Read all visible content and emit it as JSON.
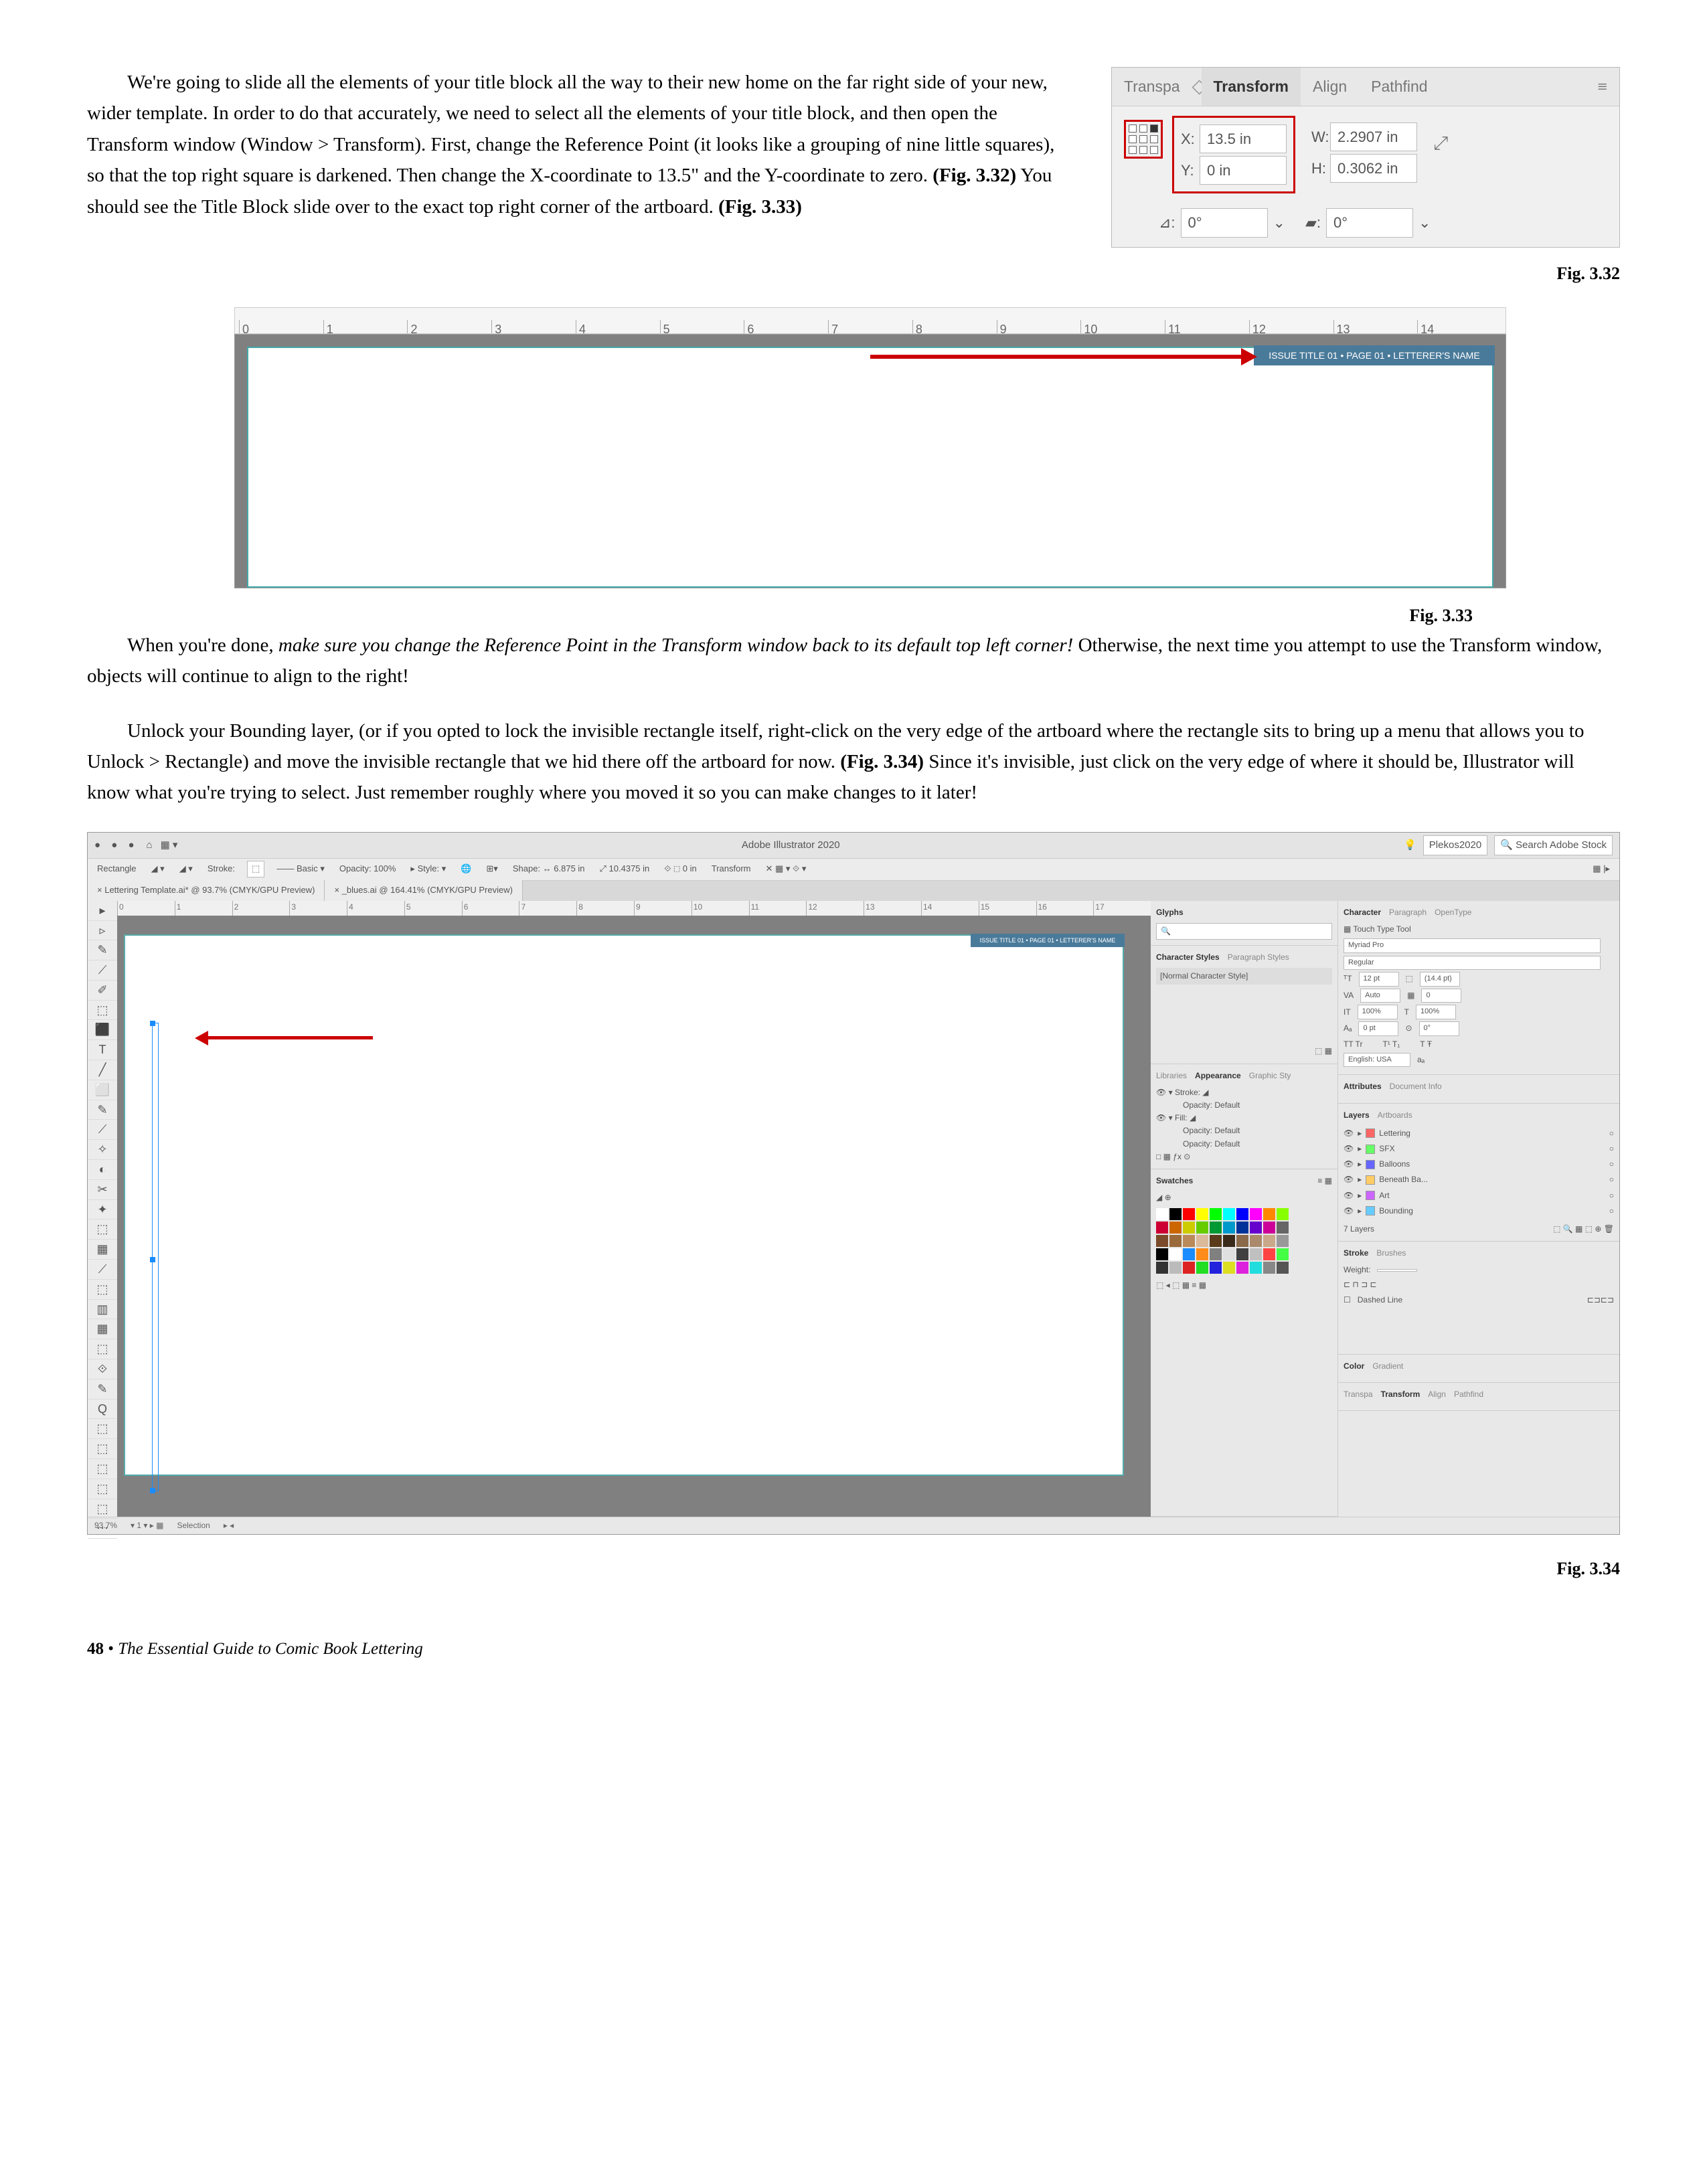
{
  "para1": "We're going to slide all the elements of your title block all the way to their new home on the far right side of your new, wider template. In order to do that accurately, we need to select all the elements of your title block, and then open the Transform window (Window > Transform). First, change the Reference Point (it looks like a grouping of nine little squares), so that the top right square is darkened. Then change the X-coordinate to 13.5\" and the Y-coordinate to zero. ",
  "para1b": "(Fig. 3.32)",
  "para1c": " You should see the Title Block slide over to the exact top right corner of the artboard. ",
  "para1d": "(Fig. 3.33)",
  "para2a": "When you're done, ",
  "para2b": "make sure you change the Reference Point in the Transform window back to its default top left corner!",
  "para2c": " Otherwise, the next time you attempt to use the Transform window, objects will continue to align to the right!",
  "para3a": "Unlock your Bounding layer, (or if you opted to lock the invisible rectangle itself, right-click on the very edge of the artboard where the rectangle sits to bring up a menu that allows you to Unlock > Rectangle) and move the invisible rectangle that we hid there off the artboard for now. ",
  "para3b": "(Fig. 3.34)",
  "para3c": " Since it's invisible, just click on the very edge of where it should be, Illustrator will know what you're trying to select. Just remember roughly where you moved it so you can make changes to it later!",
  "fig332": {
    "tabs": {
      "t1": "Transpa",
      "t2": "Transform",
      "t3": "Align",
      "t4": "Pathfind"
    },
    "x_label": "X:",
    "x_val": "13.5 in",
    "y_label": "Y:",
    "y_val": "0 in",
    "w_label": "W:",
    "w_val": "2.2907 in",
    "h_label": "H:",
    "h_val": "0.3062 in",
    "ang1_label": "⊿:",
    "ang1_val": "0°",
    "ang2_label": "▰:",
    "ang2_val": "0°",
    "caption": "Fig. 3.32"
  },
  "fig333": {
    "ruler": [
      "0",
      "1",
      "2",
      "3",
      "4",
      "5",
      "6",
      "7",
      "8",
      "9",
      "10",
      "11",
      "12",
      "13",
      "14"
    ],
    "titleblock": "ISSUE TITLE 01 • PAGE 01 • LETTERER'S NAME",
    "caption": "Fig. 3.33"
  },
  "fig334": {
    "topbar": {
      "app": "Adobe Illustrator 2020",
      "right1": "Plekos2020",
      "right2": "Search Adobe Stock"
    },
    "toolbar": {
      "shape": "Rectangle",
      "stroke": "Stroke:",
      "basic": "Basic",
      "opacity": "Opacity: 100%",
      "style": "Style:",
      "shape2": "Shape:",
      "wval": "6.875 in",
      "hval": "10.4375 in",
      "transform": "Transform"
    },
    "tabs": {
      "t1": "Lettering Template.ai* @ 93.7% (CMYK/GPU Preview)",
      "t2": "_blues.ai @ 164.41% (CMYK/GPU Preview)"
    },
    "ruler": [
      "0",
      "1",
      "2",
      "3",
      "4",
      "5",
      "6",
      "7",
      "8",
      "9",
      "10",
      "11",
      "12",
      "13",
      "14",
      "15",
      "16",
      "17"
    ],
    "titleblock": "ISSUE TITLE 01 • PAGE 01 • LETTERER'S NAME",
    "tools": [
      "▸",
      "▹",
      "✎",
      "⟋",
      "✐",
      "⬚",
      "⬛",
      "T",
      "╱",
      "⬜",
      "✎",
      "⟋",
      "✧",
      "◐",
      "✂",
      "✦",
      "⬚",
      "▦",
      "⟋",
      "⬚",
      "▥",
      "▦",
      "⬚",
      "⟐",
      "✎",
      "Q",
      "⬚",
      "⬚",
      "⬚",
      "⬚",
      "⬚",
      "⋯"
    ],
    "glyphs_panel": {
      "title": "Glyphs"
    },
    "charstyles": {
      "t1": "Character Styles",
      "t2": "Paragraph Styles",
      "item": "[Normal Character Style]"
    },
    "appearance": {
      "t1": "Libraries",
      "t2": "Appearance",
      "t3": "Graphic Sty",
      "stroke": "Stroke:",
      "fill": "Fill:",
      "op1": "Opacity: Default",
      "op2": "Opacity: Default",
      "op3": "Opacity: Default"
    },
    "swatches": {
      "title": "Swatches",
      "colors": [
        "#ffffff",
        "#000000",
        "#ff0000",
        "#ffff00",
        "#00ff00",
        "#00ffff",
        "#0000ff",
        "#ff00ff",
        "#ff8800",
        "#88ff00",
        "#cc0033",
        "#cc6600",
        "#cccc00",
        "#66cc00",
        "#009933",
        "#0099cc",
        "#003399",
        "#6600cc",
        "#cc0099",
        "#666666",
        "#7a4a2a",
        "#9a6a3a",
        "#ba8a5a",
        "#daba9a",
        "#5a3a1a",
        "#3a2a1a",
        "#8a6a4a",
        "#aa8a6a",
        "#caa88a",
        "#999999",
        "#000000",
        "#ffffff",
        "#1a8cff",
        "#ff8c1a",
        "#808080",
        "#e0e0e0",
        "#404040",
        "#c0c0c0",
        "#ff4444",
        "#44ff44",
        "#333333",
        "#bbbbbb",
        "#dd2222",
        "#22dd22",
        "#2222dd",
        "#dddd22",
        "#dd22dd",
        "#22dddd",
        "#888888",
        "#555555"
      ]
    },
    "character": {
      "t1": "Character",
      "t2": "Paragraph",
      "t3": "OpenType",
      "touch": "Touch Type Tool",
      "font": "Myriad Pro",
      "weight": "Regular",
      "size": "12 pt",
      "lead": "(14.4 pt)",
      "kern": "Auto",
      "track": "0",
      "vscale": "100%",
      "hscale": "100%",
      "baseline": "0 pt",
      "rotate": "0°",
      "lang": "English: USA"
    },
    "attributes": {
      "t1": "Attributes",
      "t2": "Document Info"
    },
    "layers": {
      "t1": "Layers",
      "t2": "Artboards",
      "rows": [
        "Lettering",
        "SFX",
        "Balloons",
        "Beneath Ba...",
        "Art",
        "Bounding"
      ],
      "footer": "7 Layers"
    },
    "stroke": {
      "t1": "Stroke",
      "t2": "Brushes",
      "weight": "Weight:",
      "dashed": "Dashed Line"
    },
    "colorgrad": {
      "t1": "Color",
      "t2": "Gradient"
    },
    "bottompanel": {
      "t1": "Transpa",
      "t2": "Transform",
      "t3": "Align",
      "t4": "Pathfind"
    },
    "status": {
      "zoom": "93.7%",
      "sel": "Selection"
    },
    "caption": "Fig. 3.34"
  },
  "footer": {
    "page": "48",
    "sep": " • ",
    "title": "The Essential Guide to Comic Book Lettering"
  }
}
